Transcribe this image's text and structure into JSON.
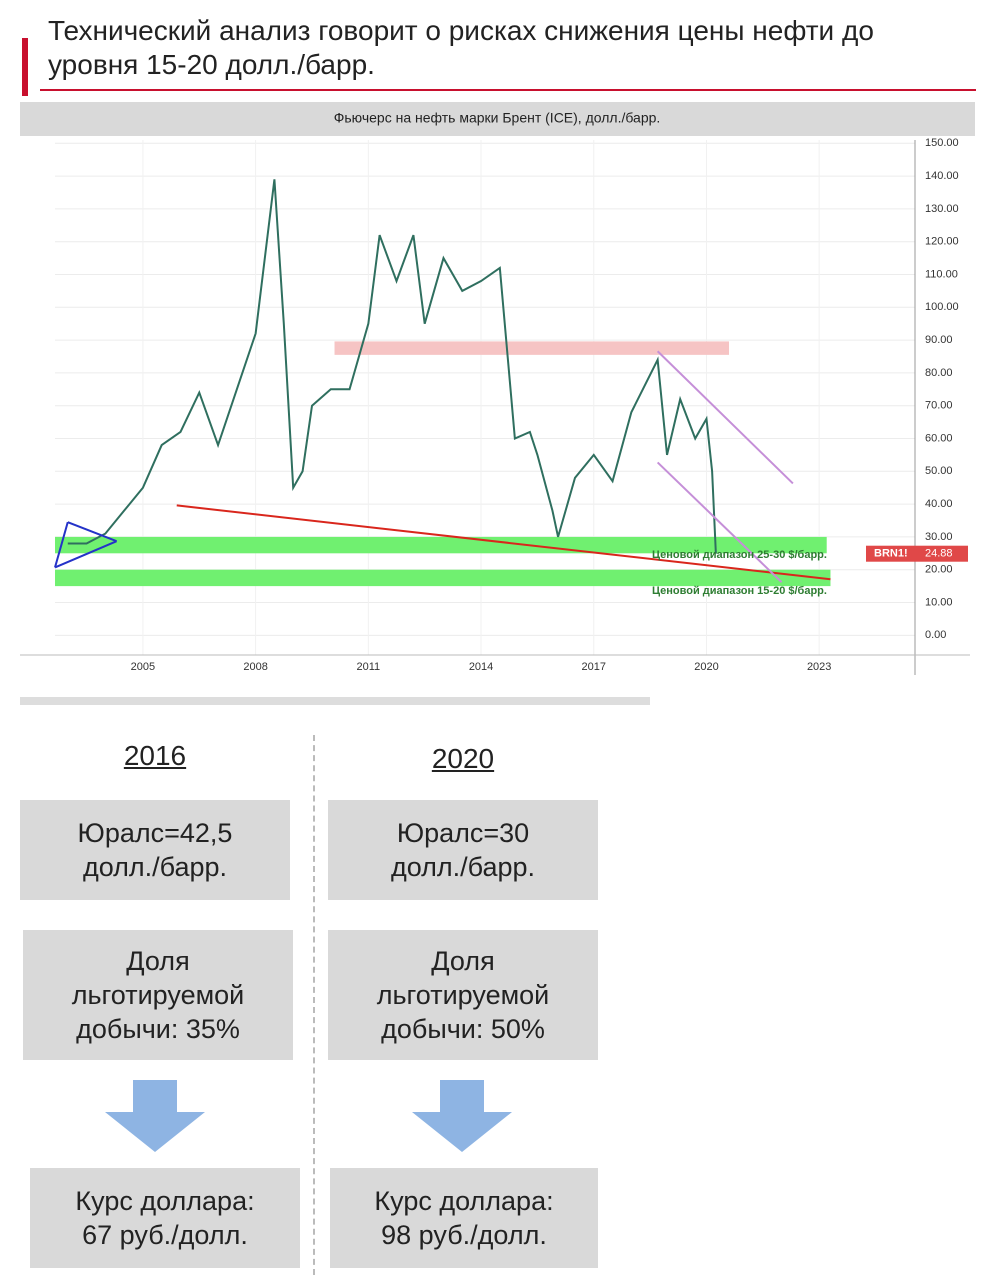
{
  "header": {
    "title": "Технический анализ говорит о рисках снижения цены нефти до уровня 15-20 долл./барр."
  },
  "chart_data": {
    "type": "line",
    "title": "Фьючерс на нефть марки Брент (ICE), долл./барр.",
    "x": [
      2003.0,
      2003.5,
      2004.0,
      2004.5,
      2005.0,
      2005.5,
      2006.0,
      2006.5,
      2007.0,
      2007.5,
      2008.0,
      2008.5,
      2008.75,
      2009.0,
      2009.25,
      2009.5,
      2010.0,
      2010.5,
      2011.0,
      2011.3,
      2011.75,
      2012.2,
      2012.5,
      2013.0,
      2013.5,
      2014.0,
      2014.5,
      2014.9,
      2015.3,
      2015.5,
      2015.9,
      2016.05,
      2016.5,
      2017.0,
      2017.5,
      2018.0,
      2018.7,
      2018.95,
      2019.3,
      2019.7,
      2020.0,
      2020.15,
      2020.25
    ],
    "values": [
      28,
      28,
      31,
      38,
      45,
      58,
      62,
      74,
      58,
      75,
      92,
      139,
      95,
      45,
      50,
      70,
      75,
      75,
      95,
      122,
      108,
      122,
      95,
      115,
      105,
      108,
      112,
      60,
      62,
      55,
      38,
      30,
      48,
      55,
      47,
      68,
      84,
      55,
      72,
      60,
      66,
      50,
      24.88
    ],
    "color": "#2f6f5f",
    "xlim": [
      2002.66,
      2025.55
    ],
    "ylim": [
      -6,
      151
    ],
    "xticks": [
      2005,
      2008,
      2011,
      2014,
      2017,
      2020,
      2023
    ],
    "yticks": [
      {
        "value": 0,
        "label": "0.00"
      },
      {
        "value": 10,
        "label": "10.00"
      },
      {
        "value": 20,
        "label": "20.00"
      },
      {
        "value": 30,
        "label": "30.00"
      },
      {
        "value": 40,
        "label": "40.00"
      },
      {
        "value": 50,
        "label": "50.00"
      },
      {
        "value": 60,
        "label": "60.00"
      },
      {
        "value": 70,
        "label": "70.00"
      },
      {
        "value": 80,
        "label": "80.00"
      },
      {
        "value": 90,
        "label": "90.00"
      },
      {
        "value": 100,
        "label": "100.00"
      },
      {
        "value": 110,
        "label": "110.00"
      },
      {
        "value": 120,
        "label": "120.00"
      },
      {
        "value": 130,
        "label": "130.00"
      },
      {
        "value": 140,
        "label": "140.00"
      },
      {
        "value": 150,
        "label": "150.00"
      }
    ],
    "grid": true,
    "bands": [
      {
        "x": [
          2002.66,
          2023.2
        ],
        "range": [
          25,
          30
        ],
        "color": "#70f070"
      },
      {
        "x": [
          2002.66,
          2023.3
        ],
        "range": [
          15,
          20
        ],
        "color": "#70f070"
      },
      {
        "x": [
          2010.1,
          2020.6
        ],
        "range": [
          85.5,
          89.6
        ],
        "color": "#f6c4c4"
      }
    ],
    "trendlines": [
      {
        "x": [
          2005.9,
          2023.3
        ],
        "y": [
          39.6,
          17.1
        ],
        "color": "#d9261c"
      },
      {
        "x": [
          2003.0,
          2002.66
        ],
        "y": [
          34.5,
          20.7
        ],
        "color": "#2432c8"
      },
      {
        "x": [
          2003.0,
          2004.3
        ],
        "y": [
          34.5,
          28.7
        ],
        "color": "#2432c8"
      },
      {
        "x": [
          2002.66,
          2004.3
        ],
        "y": [
          20.7,
          28.7
        ],
        "color": "#2432c8"
      },
      {
        "x": [
          2018.7,
          2022.3
        ],
        "y": [
          86.6,
          46.3
        ],
        "color": "#c58fd8"
      },
      {
        "x": [
          2018.7,
          2022.0
        ],
        "y": [
          52.7,
          16.2
        ],
        "color": "#c58fd8"
      }
    ],
    "annotations": [
      "Ценовой диапазон 25-30 $/барр.",
      "Ценовой диапазон 15-20 $/барр."
    ],
    "ticker": "BRN1!",
    "last_price": 24.88
  },
  "columns": [
    {
      "year": "2016",
      "urals": [
        "Юралс=42,5",
        "долл./барр."
      ],
      "share": [
        "Доля",
        "льготируемой",
        "добычи: 35%"
      ],
      "rate": [
        "Курс доллара:",
        "67 руб./долл."
      ]
    },
    {
      "year": "2020",
      "urals": [
        "Юралс=30",
        "долл./барр."
      ],
      "share": [
        "Доля",
        "льготируемой",
        "добычи: 50%"
      ],
      "rate": [
        "Курс доллара:",
        "98 руб./долл."
      ]
    }
  ]
}
